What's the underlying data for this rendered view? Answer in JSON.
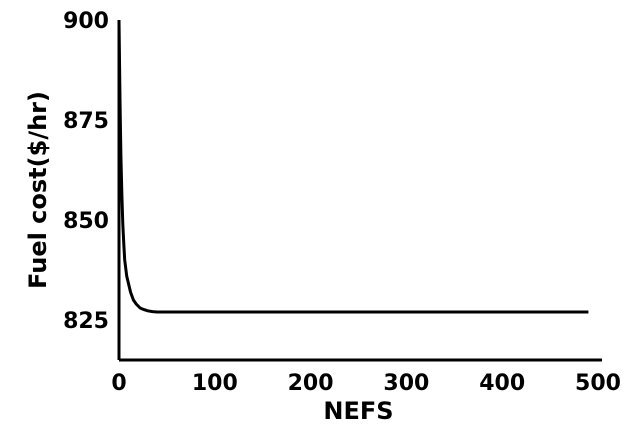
{
  "chart_data": {
    "type": "line",
    "title": "",
    "xlabel": "NEFS",
    "ylabel": "Fuel cost($/hr)",
    "xlim": [
      0,
      500
    ],
    "ylim": [
      815,
      900
    ],
    "xticks": [
      0,
      100,
      200,
      300,
      400,
      500
    ],
    "yticks": [
      825,
      850,
      875,
      900
    ],
    "grid": false,
    "legend": "none",
    "line_color": "#000000",
    "series": [
      {
        "x": [
          0,
          1,
          2,
          3,
          4,
          5,
          6,
          8,
          10,
          12,
          15,
          18,
          22,
          26,
          30,
          35,
          40,
          50,
          60,
          80,
          100,
          150,
          200,
          300,
          400,
          450,
          490
        ],
        "y": [
          900,
          880,
          866,
          856,
          849,
          844,
          840,
          836,
          834,
          832,
          830,
          829,
          828,
          827.6,
          827.3,
          827.1,
          827,
          827,
          827,
          827,
          827,
          827,
          827,
          827,
          827,
          827,
          827
        ]
      }
    ]
  }
}
